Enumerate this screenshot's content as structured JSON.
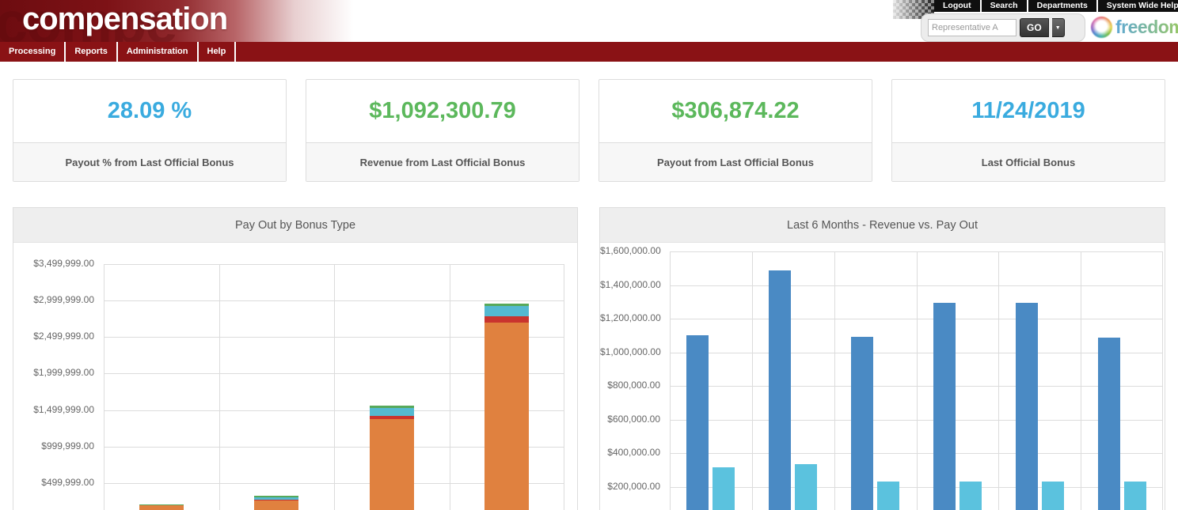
{
  "header": {
    "logo_text": "compensation",
    "logo_ghost": "compe",
    "links": [
      {
        "label": "Logout"
      },
      {
        "label": "Search"
      },
      {
        "label": "Departments"
      },
      {
        "label": "System Wide Help"
      }
    ],
    "search": {
      "placeholder": "Representative A",
      "go_label": "GO",
      "caret": "▼"
    },
    "brand": "freedom"
  },
  "nav": {
    "items": [
      {
        "label": "Processing"
      },
      {
        "label": "Reports"
      },
      {
        "label": "Administration"
      },
      {
        "label": "Help"
      }
    ]
  },
  "kpis": [
    {
      "value": "28.09 %",
      "label": "Payout % from Last Official Bonus",
      "color": "#3aabdf"
    },
    {
      "value": "$1,092,300.79",
      "label": "Revenue from Last Official Bonus",
      "color": "#5cb85c"
    },
    {
      "value": "$306,874.22",
      "label": "Payout from Last Official Bonus",
      "color": "#5cb85c"
    },
    {
      "value": "11/24/2019",
      "label": "Last Official Bonus",
      "color": "#3aabdf"
    }
  ],
  "chart_data": [
    {
      "type": "bar",
      "stacked": true,
      "title": "Pay Out by Bonus Type",
      "categories": [
        "",
        "",
        "",
        ""
      ],
      "series": [
        {
          "name": "segment-orange",
          "color": "#e0813f",
          "values": [
            193000,
            255000,
            1380000,
            2700000
          ]
        },
        {
          "name": "segment-red",
          "color": "#c9342e",
          "values": [
            0,
            12000,
            45000,
            80000
          ]
        },
        {
          "name": "segment-light-blue",
          "color": "#54b9d1",
          "values": [
            0,
            38000,
            105000,
            145000
          ]
        },
        {
          "name": "segment-green",
          "color": "#57a95a",
          "values": [
            12000,
            15000,
            30000,
            30000
          ]
        }
      ],
      "ylim": [
        0,
        3500000
      ],
      "yticks": [
        {
          "label": "$3,499,999.00",
          "value": 3499999
        },
        {
          "label": "$2,999,999.00",
          "value": 2999999
        },
        {
          "label": "$2,499,999.00",
          "value": 2499999
        },
        {
          "label": "$1,999,999.00",
          "value": 1999999
        },
        {
          "label": "$1,499,999.00",
          "value": 1499999
        },
        {
          "label": "$999,999.00",
          "value": 999999
        },
        {
          "label": "$499,999.00",
          "value": 499999
        }
      ],
      "grid": true,
      "legend": "none"
    },
    {
      "type": "bar",
      "grouped": true,
      "title": "Last 6 Months - Revenue vs. Pay Out",
      "categories": [
        "",
        "",
        "",
        "",
        "",
        ""
      ],
      "series": [
        {
          "name": "Revenue",
          "color": "#4a8ac4",
          "values": [
            1100000,
            1485000,
            1090000,
            1295000,
            1295000,
            1085000
          ]
        },
        {
          "name": "Pay Out",
          "color": "#5bc2de",
          "values": [
            315000,
            332000,
            230000,
            230000,
            232000,
            230000
          ]
        }
      ],
      "ylim": [
        0,
        1600000
      ],
      "yticks": [
        {
          "label": "$1,600,000.00",
          "value": 1600000
        },
        {
          "label": "$1,400,000.00",
          "value": 1400000
        },
        {
          "label": "$1,200,000.00",
          "value": 1200000
        },
        {
          "label": "$1,000,000.00",
          "value": 1000000
        },
        {
          "label": "$800,000.00",
          "value": 800000
        },
        {
          "label": "$600,000.00",
          "value": 600000
        },
        {
          "label": "$400,000.00",
          "value": 400000
        },
        {
          "label": "$200,000.00",
          "value": 200000
        }
      ],
      "grid": true,
      "legend": "none"
    }
  ]
}
